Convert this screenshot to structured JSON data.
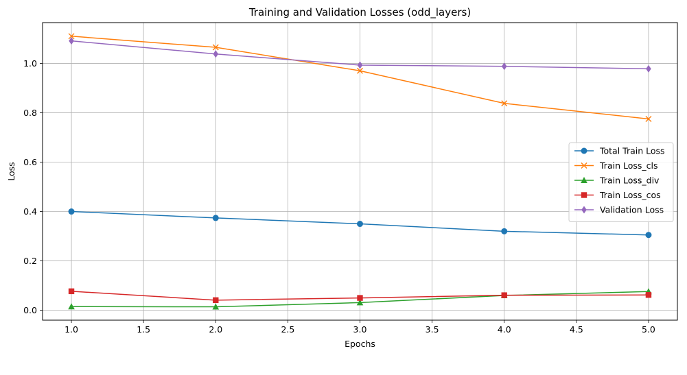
{
  "chart_data": {
    "type": "line",
    "title": "Training and Validation Losses (odd_layers)",
    "xlabel": "Epochs",
    "ylabel": "Loss",
    "xlim": [
      0.8,
      5.2
    ],
    "ylim": [
      -0.04,
      1.165
    ],
    "xticks": [
      1.0,
      1.5,
      2.0,
      2.5,
      3.0,
      3.5,
      4.0,
      4.5,
      5.0
    ],
    "xtick_labels": [
      "1.0",
      "1.5",
      "2.0",
      "2.5",
      "3.0",
      "3.5",
      "4.0",
      "4.5",
      "5.0"
    ],
    "yticks": [
      0.0,
      0.2,
      0.4,
      0.6,
      0.8,
      1.0
    ],
    "ytick_labels": [
      "0.0",
      "0.2",
      "0.4",
      "0.6",
      "0.8",
      "1.0"
    ],
    "grid": true,
    "legend_position": "center-right",
    "x": [
      1,
      2,
      3,
      4,
      5
    ],
    "series": [
      {
        "name": "Total Train Loss",
        "color": "#1f77b4",
        "marker": "circle",
        "values": [
          0.4,
          0.374,
          0.35,
          0.32,
          0.305
        ]
      },
      {
        "name": "Train Loss_cls",
        "color": "#ff7f0e",
        "marker": "x",
        "values": [
          1.11,
          1.065,
          0.97,
          0.838,
          0.775
        ]
      },
      {
        "name": "Train Loss_div",
        "color": "#2ca02c",
        "marker": "triangle",
        "values": [
          0.015,
          0.014,
          0.031,
          0.06,
          0.076
        ]
      },
      {
        "name": "Train Loss_cos",
        "color": "#d62728",
        "marker": "square",
        "values": [
          0.077,
          0.041,
          0.05,
          0.061,
          0.062
        ]
      },
      {
        "name": "Validation Loss",
        "color": "#9467bd",
        "marker": "diamond",
        "values": [
          1.091,
          1.038,
          0.993,
          0.988,
          0.978
        ]
      }
    ]
  }
}
